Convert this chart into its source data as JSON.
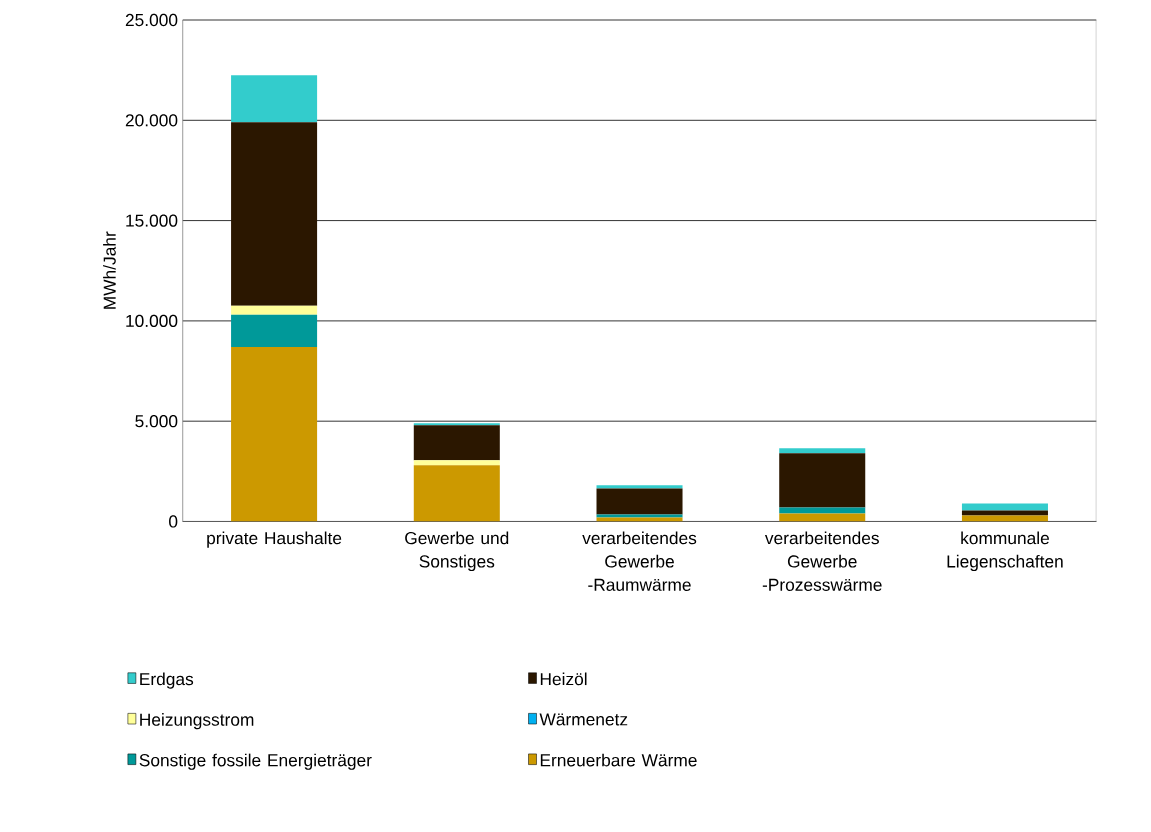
{
  "chart_data": {
    "type": "bar",
    "stacked": true,
    "ylabel": "MWh/Jahr",
    "categories": [
      "private Haushalte",
      "Gewerbe und Sonstiges",
      "verarbeitendes Gewerbe -Raumwärme",
      "verarbeitendes Gewerbe -Prozesswärme",
      "kommunale Liegenschaften"
    ],
    "series": [
      {
        "name": "Erneuerbare Wärme",
        "color": "#cc9900",
        "values": [
          8700,
          2800,
          200,
          400,
          300
        ]
      },
      {
        "name": "Sonstige fossile Energieträger",
        "color": "#009999",
        "values": [
          1600,
          0,
          150,
          300,
          0
        ]
      },
      {
        "name": "Wärmenetz",
        "color": "#00b0f0",
        "values": [
          0,
          0,
          0,
          0,
          0
        ]
      },
      {
        "name": "Heizungsstrom",
        "color": "#ffff99",
        "values": [
          450,
          250,
          0,
          0,
          0
        ]
      },
      {
        "name": "Heizöl",
        "color": "#2b1700",
        "values": [
          9150,
          1750,
          1300,
          2700,
          250
        ]
      },
      {
        "name": "Erdgas",
        "color": "#33cccc",
        "values": [
          2350,
          100,
          150,
          250,
          350
        ]
      }
    ],
    "ylim": [
      0,
      25000
    ],
    "yticks": [
      {
        "value": 0,
        "label": "0"
      },
      {
        "value": 5000,
        "label": "5.000"
      },
      {
        "value": 10000,
        "label": "10.000"
      },
      {
        "value": 15000,
        "label": "15.000"
      },
      {
        "value": 20000,
        "label": "20.000"
      },
      {
        "value": 25000,
        "label": "25.000"
      }
    ],
    "grid": "y",
    "legend": "bottom"
  }
}
